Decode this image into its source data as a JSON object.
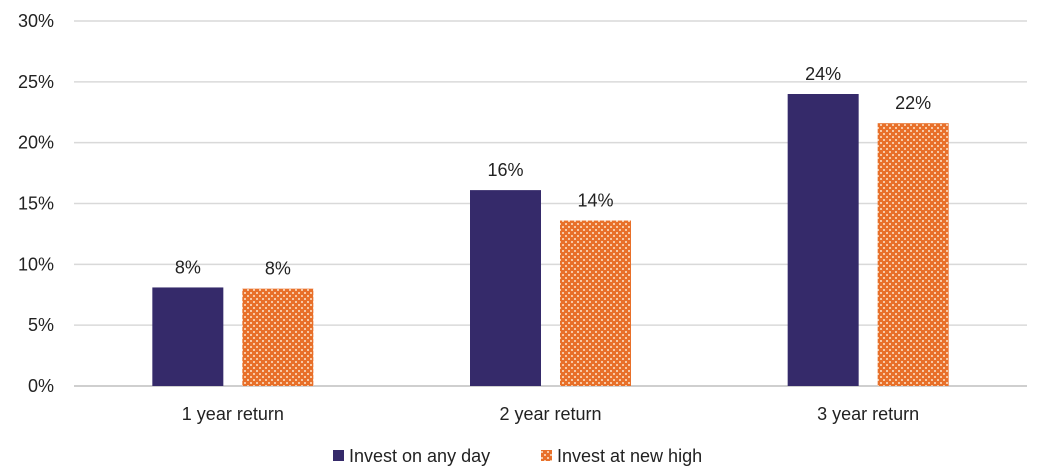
{
  "chart_data": {
    "type": "bar",
    "categories": [
      "1 year return",
      "2 year return",
      "3 year return"
    ],
    "series": [
      {
        "name": "Invest on any day",
        "values": [
          8.1,
          16.1,
          24.0
        ],
        "labels": [
          "8%",
          "16%",
          "24%"
        ],
        "color": "#352a6a",
        "pattern": "solid"
      },
      {
        "name": "Invest at new high",
        "values": [
          8.0,
          13.6,
          21.6
        ],
        "labels": [
          "8%",
          "14%",
          "22%"
        ],
        "color": "#e8702a",
        "pattern": "dotted-grid"
      }
    ],
    "yticks": [
      "0%",
      "5%",
      "10%",
      "15%",
      "20%",
      "25%",
      "30%"
    ],
    "ytick_values": [
      0,
      5,
      10,
      15,
      20,
      25,
      30
    ],
    "ylim": [
      0,
      30
    ],
    "grid": true,
    "legend": "bottom-center",
    "title": "",
    "xlabel": "",
    "ylabel": ""
  }
}
